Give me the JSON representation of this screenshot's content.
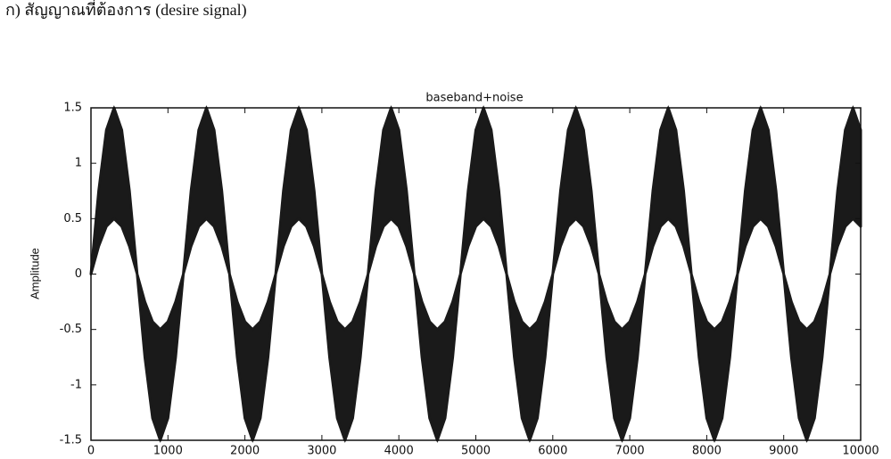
{
  "heading": "ก)  สัญญาณที่ต้องการ (desire signal)",
  "chart_data": {
    "type": "range_area",
    "title": "baseband+noise",
    "y_label": "Amplitude",
    "color": "#1a1a1a",
    "xlim": [
      0,
      10000
    ],
    "ylim": [
      -1.5,
      1.5
    ],
    "xticks": [
      0,
      1000,
      2000,
      3000,
      4000,
      5000,
      6000,
      7000,
      8000,
      9000,
      10000
    ],
    "yticks": [
      1.5,
      1,
      0.5,
      0,
      -0.5,
      -1,
      -1.5
    ],
    "x": [
      0,
      100,
      200,
      300,
      400,
      500,
      600,
      700,
      800,
      900,
      1000,
      1100,
      1200,
      1300,
      1400,
      1500,
      1600,
      1700,
      1800,
      1900,
      2000,
      2100,
      2200,
      2300,
      2400,
      2500,
      2600,
      2700,
      2800,
      2900,
      3000,
      3100,
      3200,
      3300,
      3400,
      3500,
      3600,
      3700,
      3800,
      3900,
      4000,
      4100,
      4200,
      4300,
      4400,
      4500,
      4600,
      4700,
      4800,
      4900,
      5000,
      5100,
      5200,
      5300,
      5400,
      5500,
      5600,
      5700,
      5800,
      5900,
      6000,
      6100,
      6200,
      6300,
      6400,
      6500,
      6600,
      6700,
      6800,
      6900,
      7000,
      7100,
      7200,
      7300,
      7400,
      7500,
      7600,
      7700,
      7800,
      7900,
      8000,
      8100,
      8200,
      8300,
      8400,
      8500,
      8600,
      8700,
      8800,
      8900,
      9000,
      9100,
      9200,
      9300,
      9400,
      9500,
      9600,
      9700,
      9800,
      9900,
      10000
    ],
    "upper": [
      0,
      0.75,
      1.3,
      1.5,
      1.3,
      0.75,
      0,
      -0.25,
      -0.43,
      -0.5,
      -0.43,
      -0.25,
      0,
      0.75,
      1.3,
      1.5,
      1.3,
      0.75,
      0,
      -0.25,
      -0.43,
      -0.5,
      -0.43,
      -0.25,
      0,
      0.75,
      1.3,
      1.5,
      1.3,
      0.75,
      0,
      -0.25,
      -0.43,
      -0.5,
      -0.43,
      -0.25,
      0,
      0.75,
      1.3,
      1.5,
      1.3,
      0.75,
      0,
      -0.25,
      -0.43,
      -0.5,
      -0.43,
      -0.25,
      0,
      0.75,
      1.3,
      1.5,
      1.3,
      0.75,
      0,
      -0.25,
      -0.43,
      -0.5,
      -0.43,
      -0.25,
      0,
      0.75,
      1.3,
      1.5,
      1.3,
      0.75,
      0,
      -0.25,
      -0.43,
      -0.5,
      -0.43,
      -0.25,
      0,
      0.75,
      1.3,
      1.5,
      1.3,
      0.75,
      0,
      -0.25,
      -0.43,
      -0.5,
      -0.43,
      -0.25,
      0,
      0.75,
      1.3,
      1.5,
      1.3,
      0.75,
      0,
      -0.25,
      -0.43,
      -0.5,
      -0.43,
      -0.25,
      0,
      0.75,
      1.3,
      1.5,
      1.3
    ],
    "lower": [
      0,
      0.25,
      0.43,
      0.5,
      0.43,
      0.25,
      0,
      -0.75,
      -1.3,
      -1.5,
      -1.3,
      -0.75,
      0,
      0.25,
      0.43,
      0.5,
      0.43,
      0.25,
      0,
      -0.75,
      -1.3,
      -1.5,
      -1.3,
      -0.75,
      0,
      0.25,
      0.43,
      0.5,
      0.43,
      0.25,
      0,
      -0.75,
      -1.3,
      -1.5,
      -1.3,
      -0.75,
      0,
      0.25,
      0.43,
      0.5,
      0.43,
      0.25,
      0,
      -0.75,
      -1.3,
      -1.5,
      -1.3,
      -0.75,
      0,
      0.25,
      0.43,
      0.5,
      0.43,
      0.25,
      0,
      -0.75,
      -1.3,
      -1.5,
      -1.3,
      -0.75,
      0,
      0.25,
      0.43,
      0.5,
      0.43,
      0.25,
      0,
      -0.75,
      -1.3,
      -1.5,
      -1.3,
      -0.75,
      0,
      0.25,
      0.43,
      0.5,
      0.43,
      0.25,
      0,
      -0.75,
      -1.3,
      -1.5,
      -1.3,
      -0.75,
      0,
      0.25,
      0.43,
      0.5,
      0.43,
      0.25,
      0,
      -0.75,
      -1.3,
      -1.5,
      -1.3,
      -0.75,
      0,
      0.25,
      0.43,
      0.5,
      0.43
    ]
  }
}
